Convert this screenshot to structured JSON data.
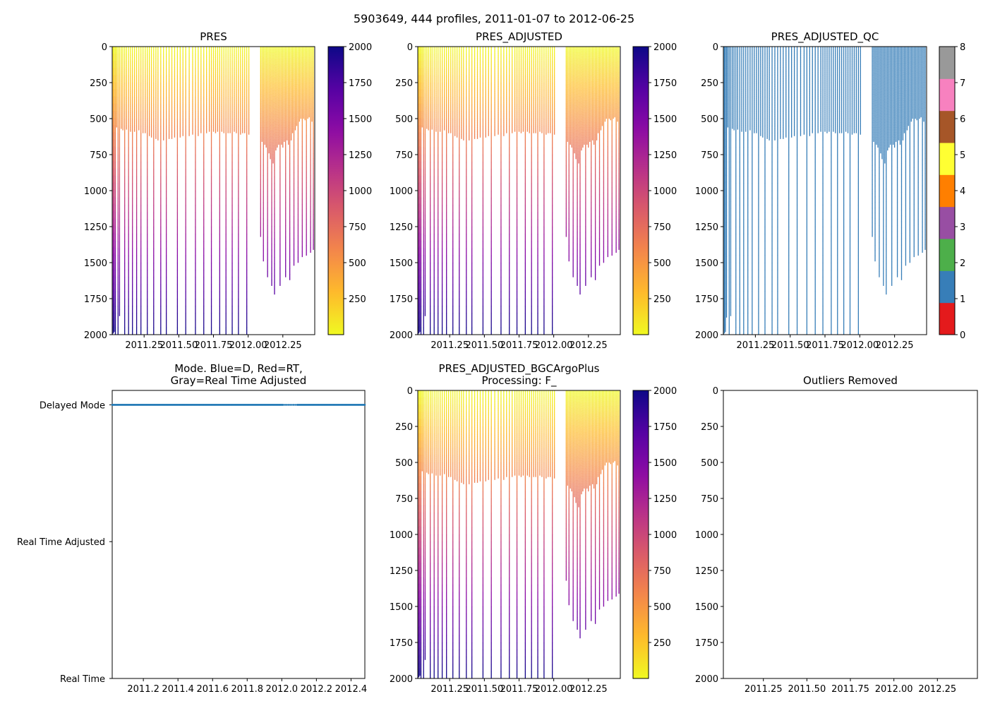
{
  "suptitle": "5903649, 444 profiles, 2011-01-07 to 2012-06-25",
  "chart_data": [
    {
      "id": "pres",
      "type": "heatmap",
      "title": "PRES",
      "x_range": [
        2011.02,
        2012.48
      ],
      "x_ticks": [
        2011.25,
        2011.5,
        2011.75,
        2012.0,
        2012.25
      ],
      "x_tick_labels": [
        "2011.25",
        "2011.50",
        "2011.75",
        "2012.00",
        "2012.25"
      ],
      "ylim": [
        2000,
        0
      ],
      "y_ticks": [
        0,
        250,
        500,
        750,
        1000,
        1250,
        1500,
        1750,
        2000
      ],
      "y_tick_labels": [
        "0",
        "250",
        "500",
        "750",
        "1000",
        "1250",
        "1500",
        "1750",
        "2000"
      ],
      "colorbar": {
        "cmap": "plasma_r",
        "range": [
          0,
          2000
        ],
        "ticks": [
          250,
          500,
          750,
          1000,
          1250,
          1500,
          1750,
          2000
        ],
        "tick_labels": [
          "250",
          "500",
          "750",
          "1000",
          "1250",
          "1500",
          "1750",
          "2000"
        ]
      }
    },
    {
      "id": "pres_adjusted",
      "type": "heatmap",
      "title": "PRES_ADJUSTED",
      "x_range": [
        2011.02,
        2012.48
      ],
      "x_ticks": [
        2011.25,
        2011.5,
        2011.75,
        2012.0,
        2012.25
      ],
      "x_tick_labels": [
        "2011.25",
        "2011.50",
        "2011.75",
        "2012.00",
        "2012.25"
      ],
      "ylim": [
        2000,
        0
      ],
      "y_ticks": [
        0,
        250,
        500,
        750,
        1000,
        1250,
        1500,
        1750,
        2000
      ],
      "y_tick_labels": [
        "0",
        "250",
        "500",
        "750",
        "1000",
        "1250",
        "1500",
        "1750",
        "2000"
      ],
      "colorbar": {
        "cmap": "plasma_r",
        "range": [
          0,
          2000
        ],
        "ticks": [
          250,
          500,
          750,
          1000,
          1250,
          1500,
          1750,
          2000
        ],
        "tick_labels": [
          "250",
          "500",
          "750",
          "1000",
          "1250",
          "1500",
          "1750",
          "2000"
        ]
      }
    },
    {
      "id": "pres_adjusted_qc",
      "type": "heatmap",
      "title": "PRES_ADJUSTED_QC",
      "x_range": [
        2011.02,
        2012.48
      ],
      "x_ticks": [
        2011.25,
        2011.5,
        2011.75,
        2012.0,
        2012.25
      ],
      "x_tick_labels": [
        "2011.25",
        "2011.50",
        "2011.75",
        "2012.00",
        "2012.25"
      ],
      "ylim": [
        2000,
        0
      ],
      "y_ticks": [
        0,
        250,
        500,
        750,
        1000,
        1250,
        1500,
        1750,
        2000
      ],
      "y_tick_labels": [
        "0",
        "250",
        "500",
        "750",
        "1000",
        "1250",
        "1500",
        "1750",
        "2000"
      ],
      "qc_value_shown": 1,
      "colorbar": {
        "type": "categorical",
        "range": [
          0,
          8
        ],
        "colors": [
          "#e41a1c",
          "#377eb8",
          "#4daf4a",
          "#984ea3",
          "#ff7f00",
          "#ffff33",
          "#a65628",
          "#f781bf",
          "#999999"
        ],
        "ticks": [
          0,
          1,
          2,
          3,
          4,
          5,
          6,
          7,
          8
        ],
        "tick_labels": [
          "0",
          "1",
          "2",
          "3",
          "4",
          "5",
          "6",
          "7",
          "8"
        ]
      }
    },
    {
      "id": "mode",
      "type": "scatter",
      "title": "Mode. Blue=D, Red=RT,\nGray=Real Time Adjusted",
      "x_range": [
        2011.02,
        2012.48
      ],
      "x_ticks": [
        2011.2,
        2011.4,
        2011.6,
        2011.8,
        2012.0,
        2012.2,
        2012.4
      ],
      "x_tick_labels": [
        "2011.2",
        "2011.4",
        "2011.6",
        "2011.8",
        "2012.0",
        "2012.2",
        "2012.4"
      ],
      "y_categories": [
        "Real Time",
        "Real Time Adjusted",
        "Delayed Mode"
      ],
      "series": [
        {
          "name": "D",
          "color": "#1f77b4",
          "category": "Delayed Mode",
          "x_start": 2011.02,
          "x_end": 2012.48,
          "gap": [
            2012.01,
            2012.09
          ]
        }
      ]
    },
    {
      "id": "pres_adjusted_bgc",
      "type": "heatmap",
      "title": "PRES_ADJUSTED_BGCArgoPlus\nProcessing: F_",
      "x_range": [
        2011.02,
        2012.48
      ],
      "x_ticks": [
        2011.25,
        2011.5,
        2011.75,
        2012.0,
        2012.25
      ],
      "x_tick_labels": [
        "2011.25",
        "2011.50",
        "2011.75",
        "2012.00",
        "2012.25"
      ],
      "ylim": [
        2000,
        0
      ],
      "y_ticks": [
        0,
        250,
        500,
        750,
        1000,
        1250,
        1500,
        1750,
        2000
      ],
      "y_tick_labels": [
        "0",
        "250",
        "500",
        "750",
        "1000",
        "1250",
        "1500",
        "1750",
        "2000"
      ],
      "colorbar": {
        "cmap": "plasma_r",
        "range": [
          0,
          2000
        ],
        "ticks": [
          250,
          500,
          750,
          1000,
          1250,
          1500,
          1750,
          2000
        ],
        "tick_labels": [
          "250",
          "500",
          "750",
          "1000",
          "1250",
          "1500",
          "1750",
          "2000"
        ]
      }
    },
    {
      "id": "outliers",
      "type": "scatter",
      "title": "Outliers Removed",
      "x_range": [
        2011.02,
        2012.48
      ],
      "x_ticks": [
        2011.25,
        2011.5,
        2011.75,
        2012.0,
        2012.25
      ],
      "x_tick_labels": [
        "2011.25",
        "2011.50",
        "2011.75",
        "2012.00",
        "2012.25"
      ],
      "ylim": [
        2000,
        0
      ],
      "y_ticks": [
        0,
        250,
        500,
        750,
        1000,
        1250,
        1500,
        1750,
        2000
      ],
      "y_tick_labels": [
        "0",
        "250",
        "500",
        "750",
        "1000",
        "1250",
        "1500",
        "1750",
        "2000"
      ],
      "points": []
    }
  ],
  "profiles": {
    "x": [
      2011.021,
      2011.028,
      2011.035,
      2011.043,
      2011.052,
      2011.062,
      2011.073,
      2011.085,
      2011.097,
      2011.11,
      2011.123,
      2011.138,
      2011.152,
      2011.166,
      2011.181,
      2011.196,
      2011.212,
      2011.227,
      2011.242,
      2011.258,
      2011.273,
      2011.288,
      2011.303,
      2011.319,
      2011.335,
      2011.35,
      2011.37,
      2011.39,
      2011.41,
      2011.43,
      2011.45,
      2011.47,
      2011.49,
      2011.51,
      2011.53,
      2011.55,
      2011.575,
      2011.6,
      2011.62,
      2011.64,
      2011.66,
      2011.68,
      2011.7,
      2011.72,
      2011.735,
      2011.75,
      2011.765,
      2011.78,
      2011.795,
      2011.81,
      2011.825,
      2011.84,
      2011.855,
      2011.87,
      2011.885,
      2011.9,
      2011.915,
      2011.93,
      2011.945,
      2011.96,
      2011.975,
      2011.99,
      2012.005,
      2012.09,
      2012.1,
      2012.11,
      2012.12,
      2012.13,
      2012.14,
      2012.15,
      2012.16,
      2012.17,
      2012.18,
      2012.19,
      2012.2,
      2012.21,
      2012.22,
      2012.23,
      2012.24,
      2012.25,
      2012.26,
      2012.27,
      2012.28,
      2012.29,
      2012.3,
      2012.31,
      2012.32,
      2012.33,
      2012.34,
      2012.35,
      2012.36,
      2012.37,
      2012.38,
      2012.39,
      2012.4,
      2012.41,
      2012.42,
      2012.43,
      2012.44,
      2012.45,
      2012.46,
      2012.47
    ],
    "pres_max": [
      2000,
      1990,
      1980,
      2000,
      560,
      2000,
      1870,
      570,
      580,
      2000,
      575,
      2000,
      590,
      2000,
      590,
      2000,
      580,
      2000,
      600,
      600,
      2000,
      620,
      630,
      2000,
      640,
      650,
      2000,
      650,
      2000,
      640,
      640,
      630,
      2000,
      630,
      620,
      2000,
      620,
      610,
      2000,
      620,
      600,
      2000,
      600,
      590,
      2000,
      590,
      600,
      590,
      2000,
      590,
      600,
      2000,
      600,
      600,
      2000,
      590,
      600,
      2000,
      610,
      600,
      600,
      2000,
      610,
      1320,
      660,
      1490,
      680,
      700,
      1600,
      740,
      780,
      1660,
      810,
      1720,
      720,
      700,
      680,
      1660,
      680,
      700,
      660,
      1600,
      650,
      680,
      1620,
      650,
      600,
      1520,
      580,
      550,
      1500,
      520,
      500,
      1460,
      500,
      510,
      1450,
      500,
      490,
      1430,
      520,
      1410
    ],
    "qc_max": [
      2000,
      1990,
      1980,
      1880,
      560,
      2000,
      1870,
      570,
      580,
      2000,
      575,
      2000,
      590,
      2000,
      590,
      2000,
      580,
      2000,
      600,
      600,
      2000,
      620,
      630,
      2000,
      640,
      650,
      2000,
      650,
      2000,
      640,
      640,
      630,
      2000,
      630,
      620,
      2000,
      620,
      610,
      2000,
      620,
      600,
      2000,
      600,
      590,
      2000,
      590,
      600,
      590,
      2000,
      590,
      600,
      2000,
      600,
      600,
      2000,
      590,
      600,
      2000,
      610,
      600,
      600,
      2000,
      610,
      1320,
      660,
      1490,
      680,
      700,
      1600,
      740,
      780,
      1660,
      810,
      1720,
      720,
      700,
      680,
      1660,
      680,
      700,
      660,
      1600,
      650,
      680,
      1620,
      650,
      600,
      1520,
      580,
      550,
      1500,
      520,
      500,
      1460,
      500,
      510,
      1450,
      500,
      490,
      1430,
      520,
      1410
    ]
  }
}
